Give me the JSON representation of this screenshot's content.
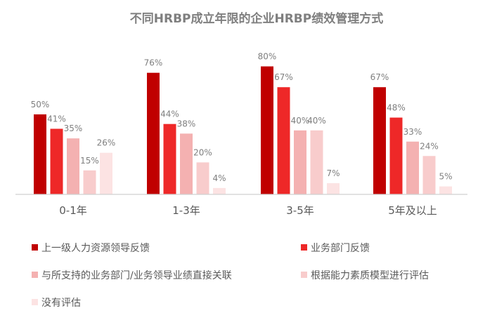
{
  "chart_data": {
    "type": "bar",
    "title": "不同HRBP成立年限的企业HRBP绩效管理方式",
    "xlabel": "",
    "ylabel": "",
    "ylim": [
      0,
      90
    ],
    "grid": false,
    "legend_position": "bottom",
    "categories": [
      "0-1年",
      "1-3年",
      "3-5年",
      "5年及以上"
    ],
    "series": [
      {
        "name": "上一级人力资源领导反馈",
        "color": "#c00000",
        "values": [
          50,
          76,
          80,
          67
        ],
        "labels": [
          "50%",
          "76%",
          "80%",
          "67%"
        ]
      },
      {
        "name": "业务部门反馈",
        "color": "#ee2828",
        "values": [
          41,
          44,
          67,
          48
        ],
        "labels": [
          "41%",
          "44%",
          "67%",
          "48%"
        ]
      },
      {
        "name": "与所支持的业务部门/业务领导业绩直接关联",
        "color": "#f4b1b1",
        "values": [
          35,
          38,
          40,
          33
        ],
        "labels": [
          "35%",
          "38%",
          "40%",
          "33%"
        ]
      },
      {
        "name": "根据能力素质模型进行评估",
        "color": "#f8cccc",
        "values": [
          15,
          20,
          40,
          24
        ],
        "labels": [
          "15%",
          "20%",
          "40%",
          "24%"
        ]
      },
      {
        "name": "没有评估",
        "color": "#fce3e3",
        "values": [
          26,
          4,
          7,
          5
        ],
        "labels": [
          "26%",
          "4%",
          "7%",
          "5%"
        ]
      }
    ]
  }
}
